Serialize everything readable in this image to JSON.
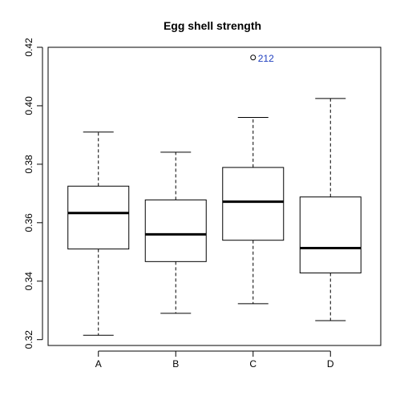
{
  "chart_data": {
    "type": "boxplot",
    "title": "Egg shell strength",
    "xlabel": "",
    "ylabel": "",
    "ylim": [
      0.318,
      0.42
    ],
    "yticks": [
      0.32,
      0.34,
      0.36,
      0.38,
      0.4,
      0.42
    ],
    "ytick_labels": [
      "0.32",
      "0.34",
      "0.36",
      "0.38",
      "0.40",
      "0.42"
    ],
    "categories": [
      "A",
      "B",
      "C",
      "D"
    ],
    "boxes": [
      {
        "name": "A",
        "whisker_low": 0.3215,
        "q1": 0.351,
        "median": 0.3633,
        "q3": 0.3725,
        "whisker_high": 0.391
      },
      {
        "name": "B",
        "whisker_low": 0.329,
        "q1": 0.3467,
        "median": 0.356,
        "q3": 0.3678,
        "whisker_high": 0.3841
      },
      {
        "name": "C",
        "whisker_low": 0.3323,
        "q1": 0.354,
        "median": 0.3672,
        "q3": 0.3789,
        "whisker_high": 0.396
      },
      {
        "name": "D",
        "whisker_low": 0.3265,
        "q1": 0.3428,
        "median": 0.3513,
        "q3": 0.3688,
        "whisker_high": 0.4025
      }
    ],
    "outliers": [
      {
        "group": "C",
        "value": 0.4165,
        "label": "212",
        "label_color": "#1f3fbf"
      }
    ],
    "grid": false,
    "legend": "none"
  }
}
